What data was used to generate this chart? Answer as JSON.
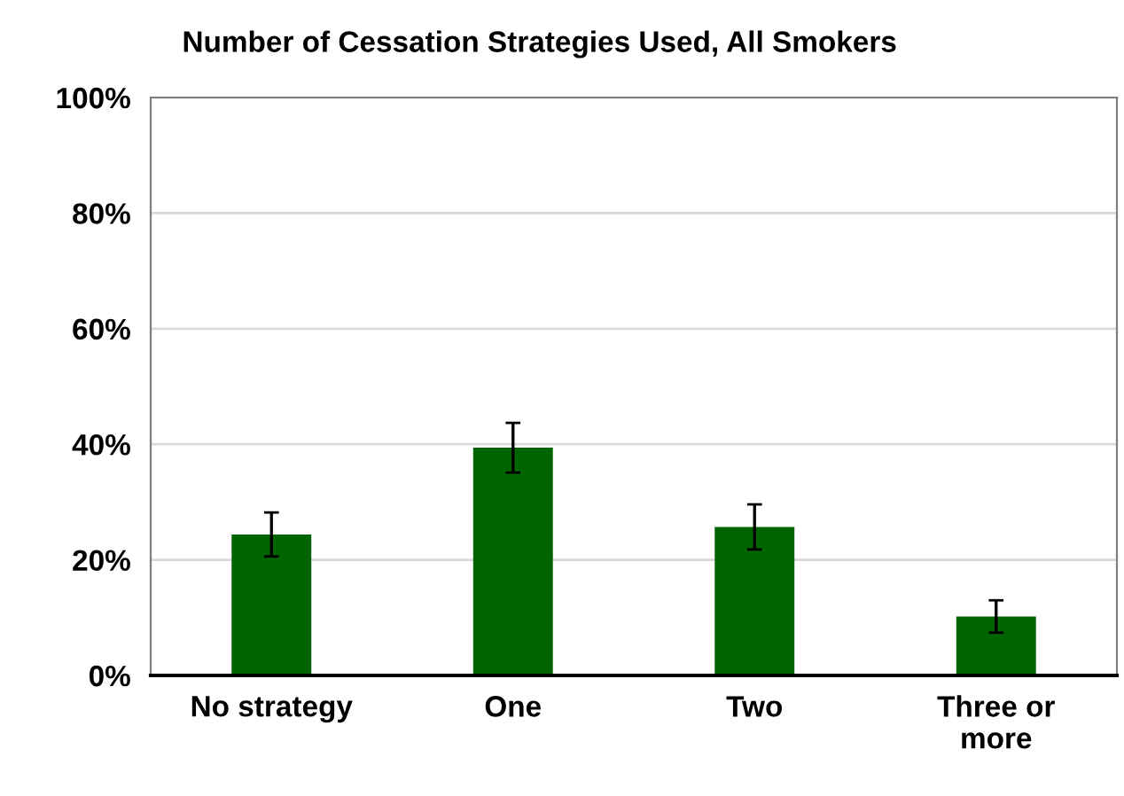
{
  "chart_data": {
    "type": "bar",
    "title": "Number of Cessation Strategies Used, All Smokers",
    "categories": [
      "No strategy",
      "One",
      "Two",
      "Three or\nmore"
    ],
    "values": [
      24.4,
      39.4,
      25.7,
      10.2
    ],
    "errors": [
      3.8,
      4.3,
      3.9,
      2.8
    ],
    "color": "#006400",
    "ylim": [
      0,
      100
    ],
    "yticks": [
      {
        "value": 0,
        "label": "0%"
      },
      {
        "value": 20,
        "label": "20%"
      },
      {
        "value": 40,
        "label": "40%"
      },
      {
        "value": 60,
        "label": "60%"
      },
      {
        "value": 80,
        "label": "80%"
      },
      {
        "value": 100,
        "label": "100%"
      }
    ],
    "grid": "y",
    "legend": false
  }
}
